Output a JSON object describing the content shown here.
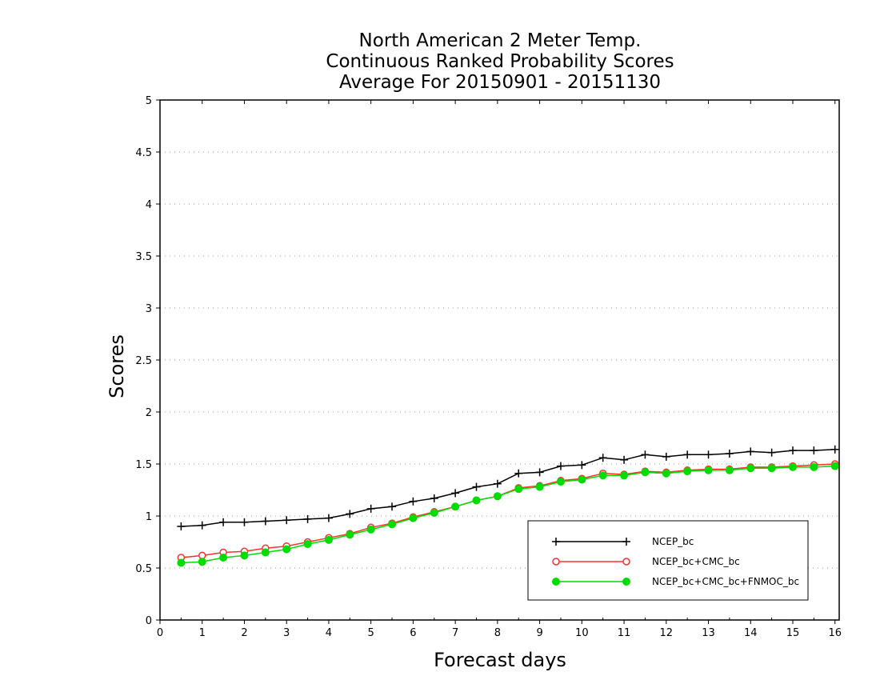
{
  "chart_data": {
    "type": "line",
    "title": [
      "North American 2 Meter Temp.",
      "Continuous Ranked Probability Scores",
      "Average For 20150901 - 20151130"
    ],
    "xlabel": "Forecast days",
    "ylabel": "Scores",
    "xlim": [
      0,
      16.1
    ],
    "ylim": [
      0,
      5
    ],
    "xticks": [
      "0",
      "1",
      "2",
      "3",
      "4",
      "5",
      "6",
      "7",
      "8",
      "9",
      "10",
      "11",
      "12",
      "13",
      "14",
      "15",
      "16"
    ],
    "yticks": [
      "0",
      "0.5",
      "1",
      "1.5",
      "2",
      "2.5",
      "3",
      "3.5",
      "4",
      "4.5",
      "5"
    ],
    "grid": "horizontal dotted",
    "legend_position": "bottom-right",
    "x": [
      0.5,
      1,
      1.5,
      2,
      2.5,
      3,
      3.5,
      4,
      4.5,
      5,
      5.5,
      6,
      6.5,
      7,
      7.5,
      8,
      8.5,
      9,
      9.5,
      10,
      10.5,
      11,
      11.5,
      12,
      12.5,
      13,
      13.5,
      14,
      14.5,
      15,
      15.5,
      16
    ],
    "series": [
      {
        "name": "NCEP_bc",
        "color": "#000000",
        "marker": "plus",
        "values": [
          0.9,
          0.91,
          0.94,
          0.94,
          0.95,
          0.96,
          0.97,
          0.98,
          1.02,
          1.07,
          1.09,
          1.14,
          1.17,
          1.22,
          1.28,
          1.31,
          1.41,
          1.42,
          1.48,
          1.49,
          1.56,
          1.54,
          1.59,
          1.57,
          1.59,
          1.59,
          1.6,
          1.62,
          1.61,
          1.63,
          1.63,
          1.64
        ]
      },
      {
        "name": "NCEP_bc+CMC_bc",
        "color": "#ff3030",
        "marker": "open-circle",
        "values": [
          0.6,
          0.62,
          0.65,
          0.66,
          0.69,
          0.71,
          0.75,
          0.79,
          0.83,
          0.89,
          0.93,
          0.99,
          1.04,
          1.09,
          1.15,
          1.19,
          1.27,
          1.29,
          1.34,
          1.36,
          1.41,
          1.4,
          1.43,
          1.42,
          1.44,
          1.45,
          1.45,
          1.47,
          1.47,
          1.48,
          1.49,
          1.5
        ]
      },
      {
        "name": "NCEP_bc+CMC_bc+FNMOC_bc",
        "color": "#00dc00",
        "marker": "filled-circle",
        "values": [
          0.55,
          0.56,
          0.6,
          0.62,
          0.65,
          0.68,
          0.73,
          0.77,
          0.82,
          0.87,
          0.92,
          0.98,
          1.03,
          1.09,
          1.15,
          1.19,
          1.26,
          1.28,
          1.33,
          1.35,
          1.39,
          1.39,
          1.42,
          1.41,
          1.43,
          1.44,
          1.44,
          1.46,
          1.46,
          1.47,
          1.47,
          1.48
        ]
      }
    ]
  }
}
